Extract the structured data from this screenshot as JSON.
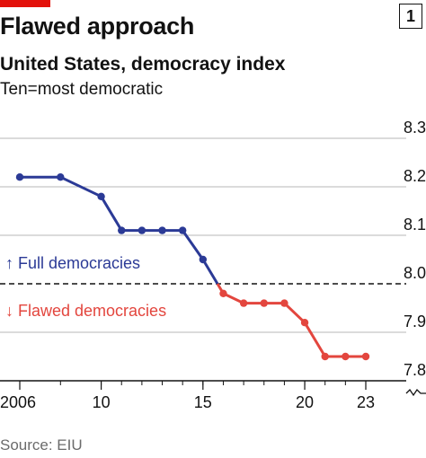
{
  "header": {
    "title": "Flawed approach",
    "subtitle": "United States, democracy index",
    "units": "Ten=most democratic",
    "chart_number": "1"
  },
  "footer": {
    "source": "Source: EIU"
  },
  "colors": {
    "full": "#2b3a96",
    "flawed": "#e3463e",
    "grid": "#b7b7b7",
    "accent": "#e3120b"
  },
  "chart_data": {
    "type": "line",
    "title": "Flawed approach",
    "subtitle": "United States, democracy index",
    "ylabel": "Ten=most democratic",
    "x": [
      2006,
      2008,
      2010,
      2011,
      2012,
      2013,
      2014,
      2015,
      2016,
      2017,
      2018,
      2019,
      2020,
      2021,
      2022,
      2023
    ],
    "values": [
      8.22,
      8.22,
      8.18,
      8.11,
      8.11,
      8.11,
      8.11,
      8.05,
      7.98,
      7.96,
      7.96,
      7.96,
      7.92,
      7.85,
      7.85,
      7.85
    ],
    "xlim": [
      2006,
      2023
    ],
    "ylim": [
      7.8,
      8.3
    ],
    "x_ticks": [
      2006,
      2010,
      2015,
      2020,
      2023
    ],
    "x_tick_labels": [
      "2006",
      "10",
      "15",
      "20",
      "23"
    ],
    "y_ticks": [
      7.8,
      7.9,
      8.0,
      8.1,
      8.2,
      8.3
    ],
    "y_tick_labels": [
      "7.8",
      "7.9",
      "8.0",
      "8.1",
      "8.2",
      "8.3"
    ],
    "threshold": 8.0,
    "y_axis_break": true,
    "annotations": [
      {
        "text": "↑ Full democracies",
        "color": "full"
      },
      {
        "text": "↓ Flawed democracies",
        "color": "flawed"
      }
    ],
    "grid": true
  }
}
